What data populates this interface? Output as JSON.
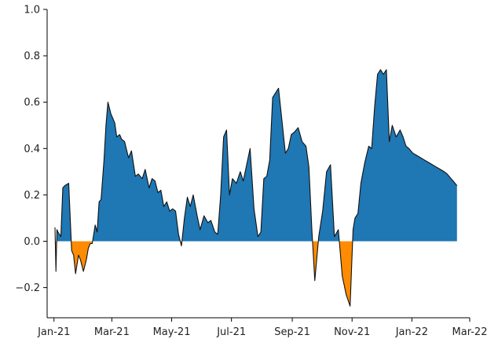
{
  "chart_data": {
    "type": "area",
    "title": "",
    "xlabel": "",
    "ylabel": "",
    "ylim": [
      -0.33,
      1.0
    ],
    "xlim": [
      "2020-12-25",
      "2022-03-01"
    ],
    "x_tick_labels": [
      "Jan-21",
      "Mar-21",
      "May-21",
      "Jul-21",
      "Sep-21",
      "Nov-21",
      "Jan-22",
      "Mar-22"
    ],
    "x_tick_dates": [
      "2021-01-01",
      "2021-03-01",
      "2021-05-01",
      "2021-07-01",
      "2021-09-01",
      "2021-11-01",
      "2022-01-01",
      "2022-03-01"
    ],
    "y_ticks": [
      -0.2,
      0.0,
      0.2,
      0.4,
      0.6,
      0.8,
      1.0
    ],
    "y_tick_labels": [
      "−0.2",
      "0.0",
      "0.2",
      "0.4",
      "0.6",
      "0.8",
      "1.0"
    ],
    "grid": false,
    "colors": {
      "positive": "#1f77b4",
      "negative": "#ff8c00",
      "outline": "#111111"
    },
    "series": [
      {
        "x": [
          "2021-01-02",
          "2021-01-03",
          "2021-01-04",
          "2021-01-05",
          "2021-01-08",
          "2021-01-10",
          "2021-01-12",
          "2021-01-16",
          "2021-01-19",
          "2021-01-21",
          "2021-01-23",
          "2021-01-26",
          "2021-01-28",
          "2021-01-31",
          "2021-02-03",
          "2021-02-05",
          "2021-02-07",
          "2021-02-09",
          "2021-02-12",
          "2021-02-14",
          "2021-02-16",
          "2021-02-18",
          "2021-02-21",
          "2021-02-23",
          "2021-02-25",
          "2021-02-28",
          "2021-03-02",
          "2021-03-04",
          "2021-03-06",
          "2021-03-09",
          "2021-03-11",
          "2021-03-14",
          "2021-03-18",
          "2021-03-21",
          "2021-03-25",
          "2021-03-28",
          "2021-04-01",
          "2021-04-04",
          "2021-04-08",
          "2021-04-11",
          "2021-04-14",
          "2021-04-17",
          "2021-04-20",
          "2021-04-23",
          "2021-04-26",
          "2021-04-29",
          "2021-05-02",
          "2021-05-05",
          "2021-05-08",
          "2021-05-11",
          "2021-05-14",
          "2021-05-17",
          "2021-05-20",
          "2021-05-23",
          "2021-05-27",
          "2021-05-30",
          "2021-06-03",
          "2021-06-07",
          "2021-06-10",
          "2021-06-14",
          "2021-06-17",
          "2021-06-20",
          "2021-06-23",
          "2021-06-26",
          "2021-06-29",
          "2021-07-02",
          "2021-07-06",
          "2021-07-10",
          "2021-07-13",
          "2021-07-16",
          "2021-07-20",
          "2021-07-24",
          "2021-07-28",
          "2021-07-31",
          "2021-08-03",
          "2021-08-06",
          "2021-08-09",
          "2021-08-12",
          "2021-08-15",
          "2021-08-18",
          "2021-08-22",
          "2021-08-25",
          "2021-08-28",
          "2021-08-31",
          "2021-09-03",
          "2021-09-07",
          "2021-09-11",
          "2021-09-15",
          "2021-09-18",
          "2021-09-21",
          "2021-09-24",
          "2021-09-28",
          "2021-10-02",
          "2021-10-06",
          "2021-10-10",
          "2021-10-14",
          "2021-10-18",
          "2021-10-22",
          "2021-10-26",
          "2021-10-30",
          "2021-11-02",
          "2021-11-04",
          "2021-11-07",
          "2021-11-10",
          "2021-11-14",
          "2021-11-18",
          "2021-11-21",
          "2021-11-24",
          "2021-11-27",
          "2021-11-30",
          "2021-12-03",
          "2021-12-06",
          "2021-12-09",
          "2021-12-12",
          "2021-12-16",
          "2021-12-20",
          "2021-12-23",
          "2021-12-26",
          "2021-12-29",
          "2022-01-02",
          "2022-01-06",
          "2022-01-10",
          "2022-01-14",
          "2022-01-18",
          "2022-01-22",
          "2022-01-26",
          "2022-01-30",
          "2022-02-03",
          "2022-02-06",
          "2022-02-08",
          "2022-02-10",
          "2022-02-12",
          "2022-02-14",
          "2022-02-16"
        ],
        "values": [
          0.06,
          -0.13,
          0.05,
          0.04,
          0.02,
          0.23,
          0.24,
          0.25,
          -0.04,
          -0.06,
          -0.14,
          -0.06,
          -0.08,
          -0.13,
          -0.08,
          -0.03,
          -0.01,
          -0.01,
          0.07,
          0.04,
          0.17,
          0.18,
          0.35,
          0.5,
          0.6,
          0.55,
          0.53,
          0.51,
          0.45,
          0.46,
          0.44,
          0.43,
          0.36,
          0.39,
          0.28,
          0.29,
          0.27,
          0.31,
          0.23,
          0.27,
          0.26,
          0.21,
          0.22,
          0.15,
          0.17,
          0.13,
          0.14,
          0.13,
          0.03,
          -0.02,
          0.1,
          0.19,
          0.15,
          0.2,
          0.11,
          0.05,
          0.11,
          0.08,
          0.09,
          0.04,
          0.03,
          0.2,
          0.45,
          0.48,
          0.2,
          0.27,
          0.25,
          0.3,
          0.26,
          0.32,
          0.4,
          0.14,
          0.02,
          0.04,
          0.27,
          0.28,
          0.35,
          0.62,
          0.64,
          0.66,
          0.5,
          0.38,
          0.4,
          0.46,
          0.47,
          0.49,
          0.43,
          0.41,
          0.32,
          0.05,
          -0.17,
          0.02,
          0.13,
          0.3,
          0.33,
          0.02,
          0.05,
          -0.15,
          -0.23,
          -0.28,
          0.05,
          0.1,
          0.12,
          0.25,
          0.34,
          0.41,
          0.4,
          0.58,
          0.72,
          0.74,
          0.72,
          0.74,
          0.43,
          0.5,
          0.45,
          0.48,
          0.45,
          0.41,
          0.4,
          0.38,
          0.37,
          0.36,
          0.35,
          0.34,
          0.33,
          0.32,
          0.31,
          0.3,
          0.29,
          0.28,
          0.27,
          0.26,
          0.25,
          0.24
        ]
      }
    ]
  }
}
